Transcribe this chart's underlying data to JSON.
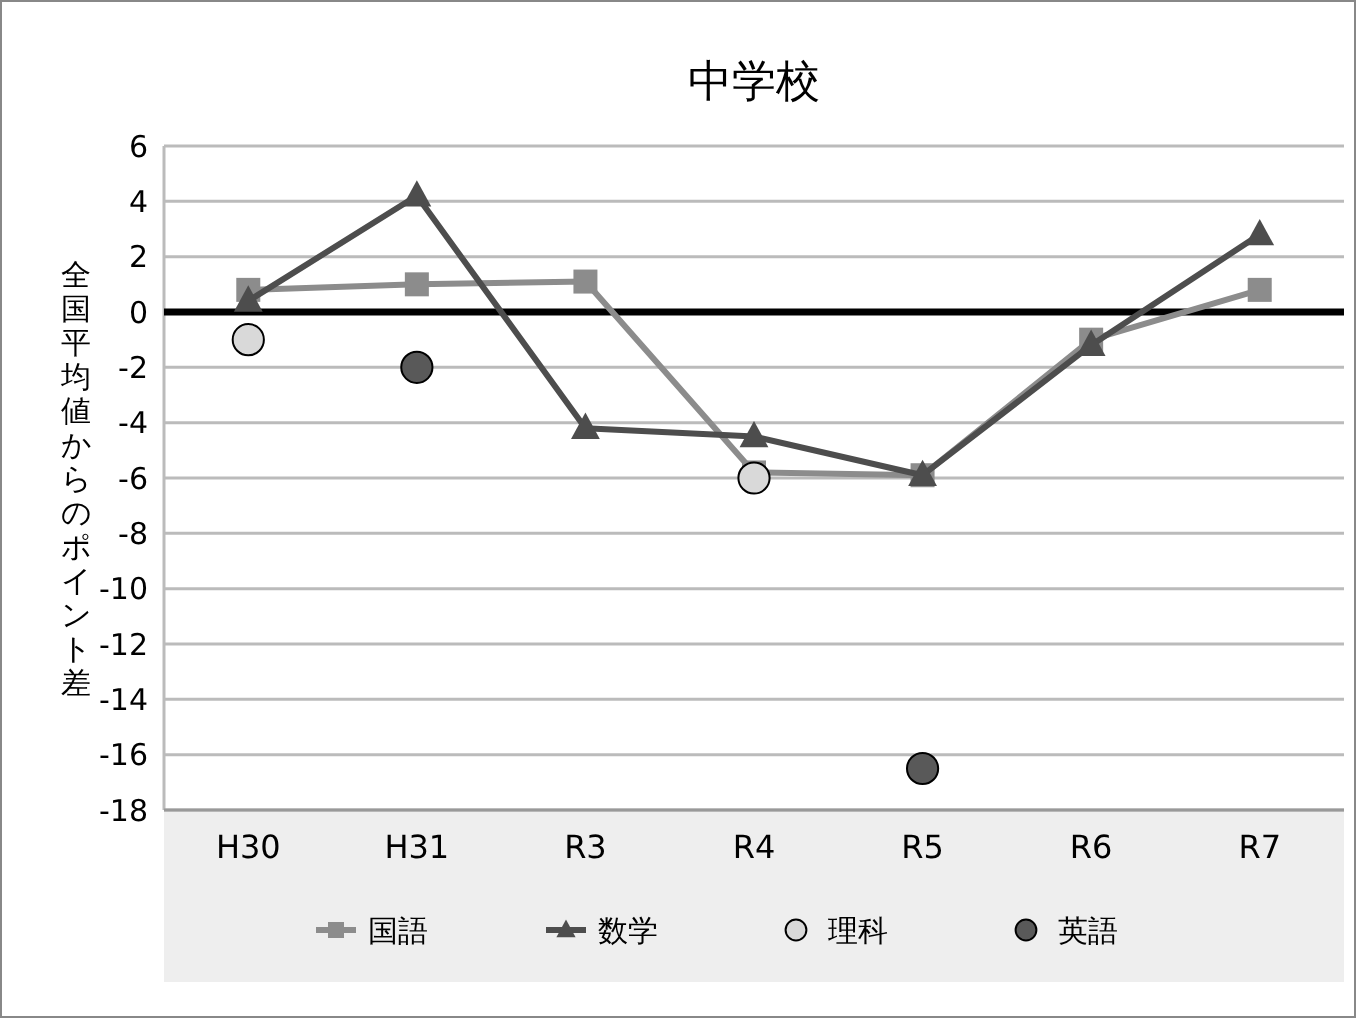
{
  "chart_data": {
    "type": "line",
    "title": "中学校",
    "ylabel": "全国平均値からのポイント差",
    "categories": [
      "H30",
      "H31",
      "R3",
      "R4",
      "R5",
      "R6",
      "R7"
    ],
    "series": [
      {
        "name": "国語",
        "marker": "square",
        "color": "#8c8c8c",
        "values": [
          0.8,
          1.0,
          1.1,
          -5.8,
          -5.9,
          -1.0,
          0.8
        ]
      },
      {
        "name": "数学",
        "marker": "triangle",
        "color": "#4d4d4d",
        "values": [
          0.4,
          4.2,
          -4.2,
          -4.5,
          -5.9,
          -1.2,
          2.8
        ]
      },
      {
        "name": "理科",
        "type": "scatter",
        "marker": "circle",
        "color": "#d9d9d9",
        "values": [
          -1.0,
          null,
          null,
          -6.0,
          null,
          null,
          null
        ]
      },
      {
        "name": "英語",
        "type": "scatter",
        "marker": "circle",
        "color": "#595959",
        "values": [
          null,
          -2.0,
          null,
          null,
          -16.5,
          null,
          null
        ]
      }
    ],
    "ylim": [
      -18,
      6
    ],
    "yticks": [
      -18,
      -16,
      -14,
      -12,
      -10,
      -8,
      -6,
      -4,
      -2,
      0,
      2,
      4,
      6
    ],
    "grid": "y",
    "legend": "bottom",
    "ref_lines": [
      {
        "axis": "y",
        "value": 0,
        "color": "#000000"
      }
    ]
  }
}
